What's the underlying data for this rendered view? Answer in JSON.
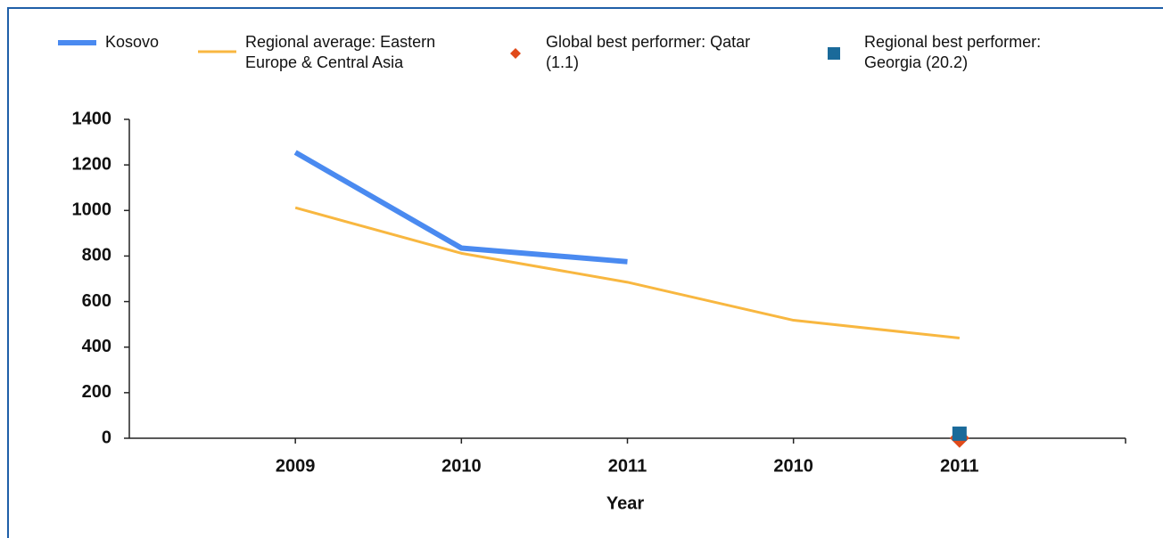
{
  "chart_data": {
    "type": "line",
    "categories": [
      "2009",
      "2010",
      "2011",
      "2010",
      "2011"
    ],
    "x_label": "Year",
    "series": [
      {
        "name": "Kosovo",
        "color": "#4a8af0",
        "marker": "line",
        "values": [
          1255,
          835,
          775,
          null,
          null
        ]
      },
      {
        "name": "Regional average: Eastern Europe & Central Asia",
        "color": "#f8b740",
        "marker": "line",
        "values": [
          1012,
          812,
          685,
          518,
          440
        ]
      },
      {
        "name": "Global best performer: Qatar (1.1)",
        "color": "#e04a1a",
        "marker": "diamond",
        "values": [
          null,
          null,
          null,
          null,
          1.1
        ]
      },
      {
        "name": "Regional best performer: Georgia (20.2)",
        "color": "#1a6a9a",
        "marker": "square",
        "values": [
          null,
          null,
          null,
          null,
          20.2
        ]
      }
    ],
    "ylim": [
      0,
      1400
    ],
    "yticks": [
      0,
      200,
      400,
      600,
      800,
      1000,
      1200,
      1400
    ]
  }
}
